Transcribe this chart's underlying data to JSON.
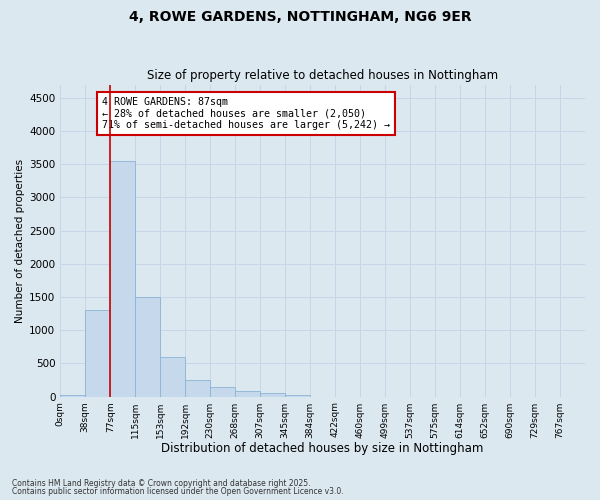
{
  "title_line1": "4, ROWE GARDENS, NOTTINGHAM, NG6 9ER",
  "title_line2": "Size of property relative to detached houses in Nottingham",
  "xlabel": "Distribution of detached houses by size in Nottingham",
  "ylabel": "Number of detached properties",
  "bar_labels": [
    "0sqm",
    "38sqm",
    "77sqm",
    "115sqm",
    "153sqm",
    "192sqm",
    "230sqm",
    "268sqm",
    "307sqm",
    "345sqm",
    "384sqm",
    "422sqm",
    "460sqm",
    "499sqm",
    "537sqm",
    "575sqm",
    "614sqm",
    "652sqm",
    "690sqm",
    "729sqm",
    "767sqm"
  ],
  "bar_values": [
    30,
    1300,
    3550,
    1500,
    600,
    250,
    140,
    90,
    50,
    20,
    0,
    0,
    0,
    0,
    0,
    0,
    0,
    0,
    0,
    0,
    0
  ],
  "bar_color": "#c6d9ec",
  "bar_edge_color": "#8ab4d4",
  "property_line_x": 2.0,
  "annotation_text": "4 ROWE GARDENS: 87sqm\n← 28% of detached houses are smaller (2,050)\n71% of semi-detached houses are larger (5,242) →",
  "annotation_box_color": "#ffffff",
  "annotation_box_edge": "#cc0000",
  "vline_color": "#cc0000",
  "grid_color": "#c8d4e8",
  "bg_color": "#dce8f0",
  "ylim": [
    0,
    4700
  ],
  "yticks": [
    0,
    500,
    1000,
    1500,
    2000,
    2500,
    3000,
    3500,
    4000,
    4500
  ],
  "footnote1": "Contains HM Land Registry data © Crown copyright and database right 2025.",
  "footnote2": "Contains public sector information licensed under the Open Government Licence v3.0."
}
